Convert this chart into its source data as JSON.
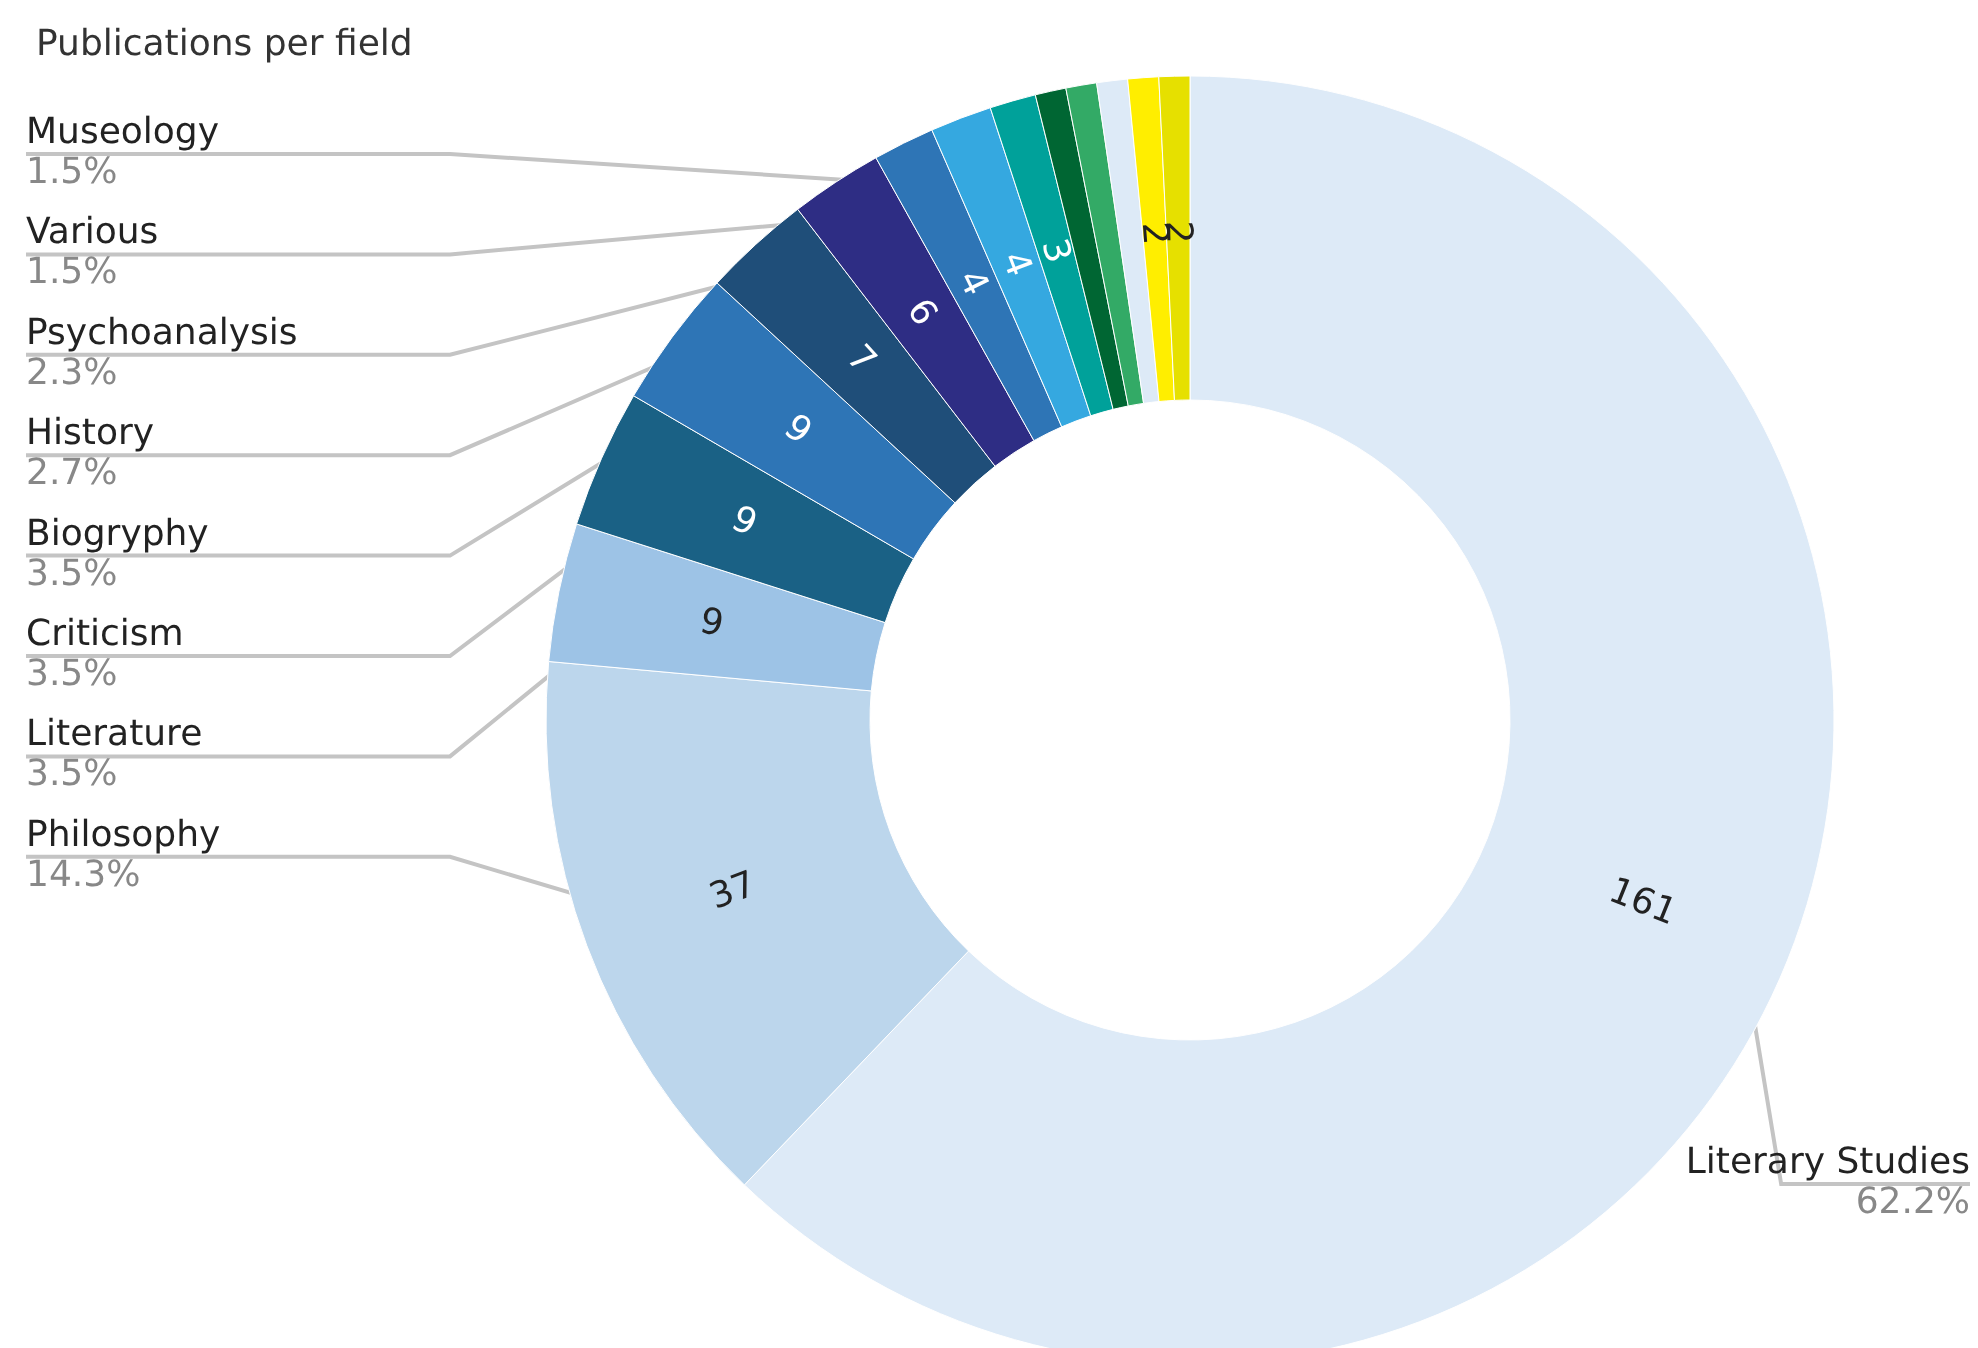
{
  "chart_data": {
    "type": "donut",
    "title": "Publications per field",
    "categories": [
      "Literary Studies",
      "Philosophy",
      "Literature",
      "Criticism",
      "Biogryphy",
      "History",
      "Psychoanalysis",
      "Various",
      "Museology",
      null,
      null,
      null,
      null,
      null,
      null
    ],
    "values": [
      161,
      37,
      9,
      9,
      9,
      7,
      6,
      4,
      4,
      3,
      2,
      2,
      2,
      2,
      2
    ],
    "annotations": [
      "62.2%",
      "14.3%",
      "3.5%",
      "3.5%",
      "3.5%",
      "2.7%",
      "2.3%",
      "1.5%",
      "1.5%"
    ],
    "value_labels": [
      "161",
      "37",
      "9",
      "9",
      "9",
      "7",
      "6",
      "4",
      "4",
      "3",
      null,
      null,
      null,
      "2",
      "2"
    ],
    "colors": [
      "#ddeaf7",
      "#bcd6ec",
      "#9dc3e6",
      "#1a6185",
      "#2e75b6",
      "#1f4e79",
      "#2e2d84",
      "#2e75b6",
      "#35a8e0",
      "#00a19a",
      "#006633",
      "#33aa66",
      "#ddeaf7",
      "#ffee00",
      "#e6e000"
    ]
  }
}
